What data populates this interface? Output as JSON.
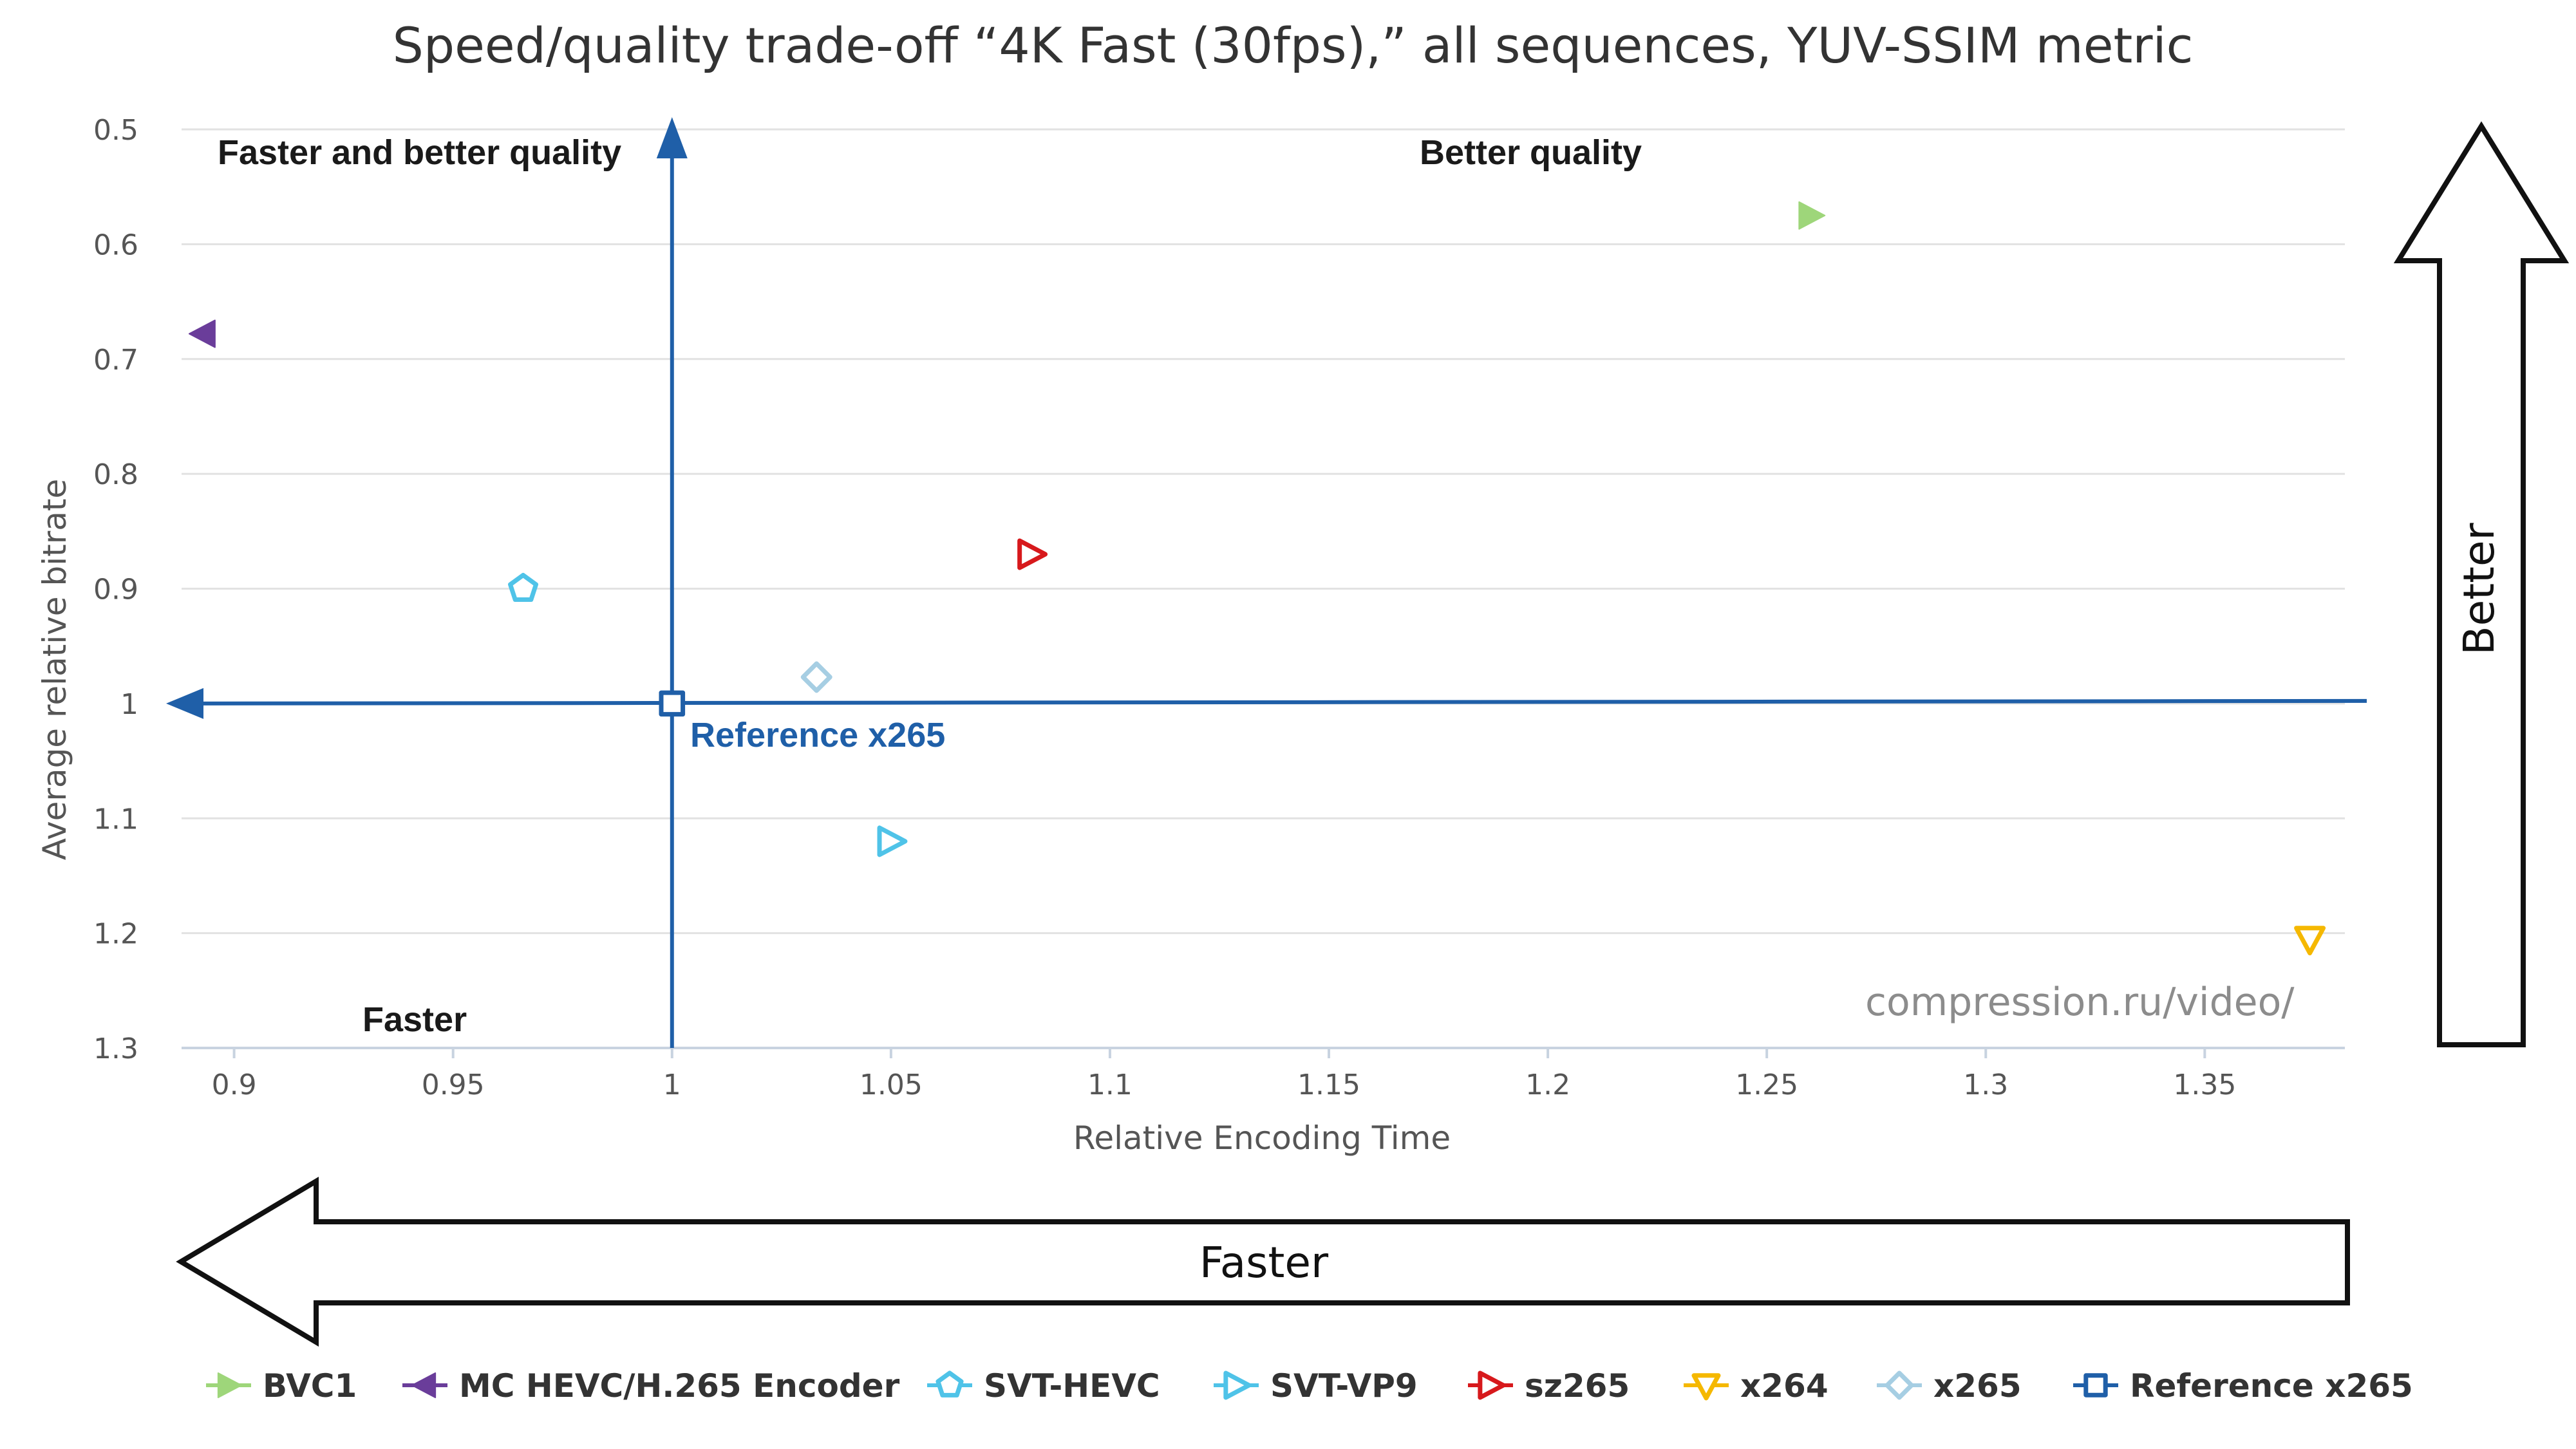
{
  "chart_data": {
    "type": "scatter",
    "title": "Speed/quality trade-off “4K Fast (30fps),” all sequences, YUV-SSIM metric",
    "xlabel": "Relative Encoding Time",
    "ylabel": "Average relative bitrate",
    "xlim": [
      0.888,
      1.382
    ],
    "ylim": [
      1.3,
      0.5
    ],
    "y_reversed": true,
    "grid": "horizontal",
    "legend_position": "bottom",
    "x_ticks": [
      "0.9",
      "0.95",
      "1",
      "1.05",
      "1.1",
      "1.15",
      "1.2",
      "1.25",
      "1.3",
      "1.35"
    ],
    "y_ticks": [
      "0.5",
      "0.6",
      "0.7",
      "0.8",
      "0.9",
      "1",
      "1.1",
      "1.2",
      "1.3"
    ],
    "series": [
      {
        "name": "BVC1",
        "color": "#9ed67a",
        "marker": "triangle-right-filled",
        "x": 1.26,
        "y": 0.575
      },
      {
        "name": "MC HEVC/H.265 Encoder",
        "color": "#6a3d9a",
        "marker": "triangle-left-filled",
        "x": 0.893,
        "y": 0.678
      },
      {
        "name": "SVT-HEVC",
        "color": "#4fc3e8",
        "marker": "pentagon-open",
        "x": 0.966,
        "y": 0.9
      },
      {
        "name": "SVT-VP9",
        "color": "#4fc3e8",
        "marker": "triangle-right-open",
        "x": 1.05,
        "y": 1.12
      },
      {
        "name": "sz265",
        "color": "#d7191c",
        "marker": "triangle-right-open",
        "x": 1.082,
        "y": 0.87
      },
      {
        "name": "x264",
        "color": "#f5b800",
        "marker": "triangle-down-open",
        "x": 1.374,
        "y": 1.205
      },
      {
        "name": "x265",
        "color": "#a6cee3",
        "marker": "diamond-open",
        "x": 1.033,
        "y": 0.977
      },
      {
        "name": "Reference x265",
        "color": "#1f5fa8",
        "marker": "square-open",
        "x": 1.0,
        "y": 1.0
      }
    ],
    "annotations": {
      "top_left": "Faster and better quality",
      "top_right": "Better quality",
      "bottom_left": "Faster",
      "reference": "Reference x265",
      "watermark": "compression.ru/video/",
      "big_arrow_up": "Better",
      "big_arrow_left": "Faster"
    }
  }
}
